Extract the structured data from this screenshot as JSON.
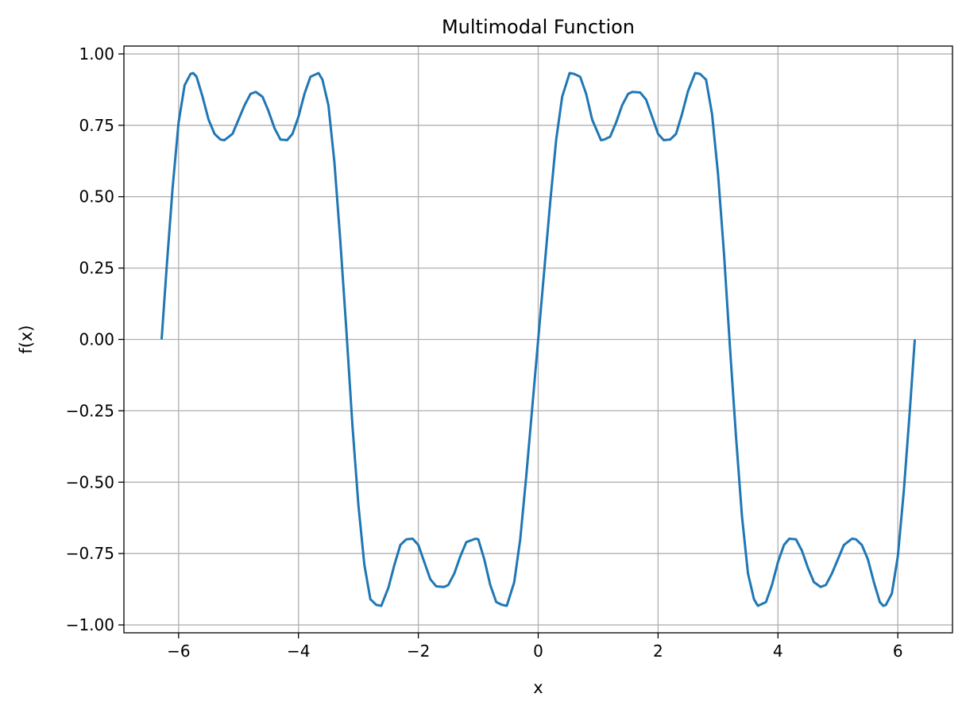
{
  "chart_data": {
    "type": "line",
    "title": "Multimodal Function",
    "xlabel": "x",
    "ylabel": "f(x)",
    "xlim": [
      -6.912,
      6.912
    ],
    "ylim": [
      -1.0276,
      1.0276
    ],
    "xticks": [
      -6,
      -4,
      -2,
      0,
      2,
      4,
      6
    ],
    "xtick_labels": [
      "−6",
      "−4",
      "−2",
      "0",
      "2",
      "4",
      "6"
    ],
    "yticks": [
      -1.0,
      -0.75,
      -0.5,
      -0.25,
      0.0,
      0.25,
      0.5,
      0.75,
      1.0
    ],
    "ytick_labels": [
      "−1.00",
      "−0.75",
      "−0.50",
      "−0.25",
      "0.00",
      "0.25",
      "0.50",
      "0.75",
      "1.00"
    ],
    "grid": true,
    "legend": "none",
    "series": [
      {
        "color": "#1f77b4",
        "x": [
          -6.283,
          -6.2,
          -6.1,
          -6.0,
          -5.9,
          -5.8,
          -5.756,
          -5.7,
          -5.6,
          -5.5,
          -5.4,
          -5.3,
          -5.236,
          -5.1,
          -5.0,
          -4.9,
          -4.8,
          -4.712,
          -4.6,
          -4.5,
          -4.4,
          -4.3,
          -4.189,
          -4.1,
          -4.0,
          -3.9,
          -3.8,
          -3.665,
          -3.6,
          -3.5,
          -3.4,
          -3.3,
          -3.2,
          -3.1,
          -3.0,
          -2.9,
          -2.8,
          -2.7,
          -2.618,
          -2.5,
          -2.4,
          -2.3,
          -2.2,
          -2.094,
          -2.0,
          -1.9,
          -1.8,
          -1.7,
          -1.571,
          -1.5,
          -1.4,
          -1.3,
          -1.2,
          -1.047,
          -1.0,
          -0.9,
          -0.8,
          -0.7,
          -0.6,
          -0.524,
          -0.4,
          -0.3,
          -0.2,
          -0.1,
          0.0,
          0.1,
          0.2,
          0.3,
          0.4,
          0.524,
          0.6,
          0.7,
          0.8,
          0.9,
          1.047,
          1.1,
          1.2,
          1.3,
          1.4,
          1.5,
          1.571,
          1.7,
          1.8,
          1.9,
          2.0,
          2.094,
          2.2,
          2.3,
          2.4,
          2.5,
          2.618,
          2.7,
          2.8,
          2.9,
          3.0,
          3.1,
          3.2,
          3.3,
          3.4,
          3.5,
          3.6,
          3.665,
          3.8,
          3.9,
          4.0,
          4.1,
          4.189,
          4.3,
          4.4,
          4.5,
          4.6,
          4.712,
          4.8,
          4.9,
          5.0,
          5.1,
          5.236,
          5.3,
          5.4,
          5.5,
          5.6,
          5.7,
          5.756,
          5.8,
          5.9,
          6.0,
          6.1,
          6.2,
          6.283
        ],
        "y": [
          0.0,
          0.25,
          0.53,
          0.76,
          0.89,
          0.93,
          0.933,
          0.92,
          0.85,
          0.77,
          0.72,
          0.7,
          0.698,
          0.72,
          0.77,
          0.82,
          0.86,
          0.867,
          0.85,
          0.8,
          0.74,
          0.7,
          0.698,
          0.72,
          0.78,
          0.86,
          0.92,
          0.933,
          0.91,
          0.82,
          0.62,
          0.34,
          0.03,
          -0.3,
          -0.58,
          -0.79,
          -0.91,
          -0.93,
          -0.933,
          -0.87,
          -0.79,
          -0.72,
          -0.7,
          -0.698,
          -0.72,
          -0.78,
          -0.84,
          -0.865,
          -0.867,
          -0.86,
          -0.82,
          -0.76,
          -0.71,
          -0.698,
          -0.7,
          -0.77,
          -0.86,
          -0.92,
          -0.93,
          -0.933,
          -0.85,
          -0.7,
          -0.48,
          -0.24,
          0.0,
          0.24,
          0.48,
          0.7,
          0.85,
          0.933,
          0.93,
          0.92,
          0.86,
          0.77,
          0.698,
          0.7,
          0.71,
          0.76,
          0.82,
          0.86,
          0.867,
          0.865,
          0.84,
          0.78,
          0.72,
          0.698,
          0.7,
          0.72,
          0.79,
          0.87,
          0.933,
          0.93,
          0.91,
          0.79,
          0.58,
          0.3,
          -0.03,
          -0.34,
          -0.62,
          -0.82,
          -0.91,
          -0.933,
          -0.92,
          -0.86,
          -0.78,
          -0.72,
          -0.698,
          -0.7,
          -0.74,
          -0.8,
          -0.85,
          -0.867,
          -0.86,
          -0.82,
          -0.77,
          -0.72,
          -0.698,
          -0.7,
          -0.72,
          -0.77,
          -0.85,
          -0.92,
          -0.933,
          -0.93,
          -0.89,
          -0.76,
          -0.53,
          -0.25,
          0.0
        ]
      }
    ]
  }
}
